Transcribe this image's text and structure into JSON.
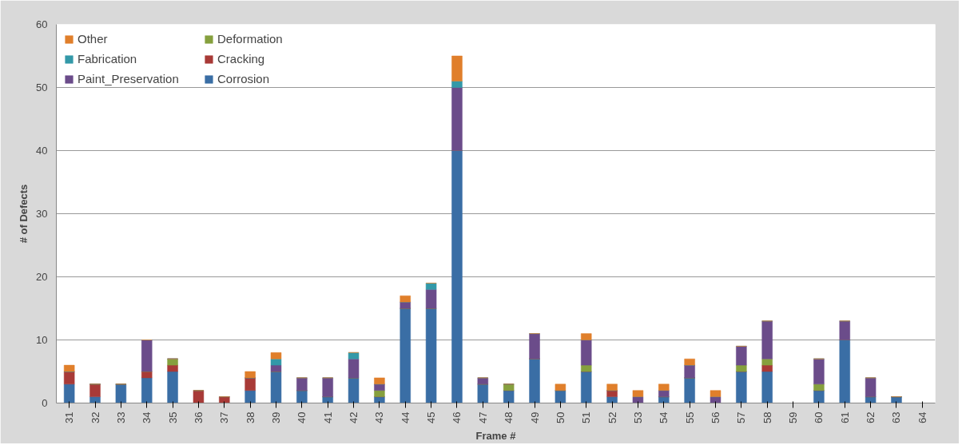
{
  "chart_data": {
    "type": "bar",
    "stacked": true,
    "xlabel": "Frame #",
    "ylabel": "# of Defects",
    "categories": [
      "31",
      "32",
      "33",
      "34",
      "35",
      "36",
      "37",
      "38",
      "39",
      "40",
      "41",
      "42",
      "43",
      "44",
      "45",
      "46",
      "47",
      "48",
      "49",
      "50",
      "51",
      "52",
      "53",
      "54",
      "55",
      "56",
      "57",
      "58",
      "59",
      "60",
      "61",
      "62",
      "63",
      "64"
    ],
    "series": [
      {
        "name": "Corrosion",
        "color": "#3a6ea5",
        "values": [
          3,
          1,
          3,
          4,
          5,
          0,
          0,
          2,
          5,
          2,
          1,
          4,
          1,
          15,
          15,
          40,
          3,
          2,
          7,
          2,
          5,
          1,
          0,
          1,
          4,
          0,
          5,
          5,
          0,
          2,
          10,
          1,
          1,
          0
        ]
      },
      {
        "name": "Cracking",
        "color": "#a83a37",
        "values": [
          2,
          2,
          0,
          1,
          1,
          2,
          1,
          2,
          0,
          0,
          0,
          0,
          0,
          0,
          0,
          0,
          0,
          0,
          0,
          0,
          0,
          1,
          0,
          0,
          0,
          0,
          0,
          1,
          0,
          0,
          0,
          0,
          0,
          0
        ]
      },
      {
        "name": "Deformation",
        "color": "#86a03e",
        "values": [
          0,
          0,
          0,
          0,
          1,
          0,
          0,
          0,
          0,
          0,
          0,
          0,
          1,
          0,
          0,
          0,
          0,
          1,
          0,
          0,
          1,
          0,
          0,
          0,
          0,
          0,
          1,
          1,
          0,
          1,
          0,
          0,
          0,
          0
        ]
      },
      {
        "name": "Paint_Preservation",
        "color": "#6b4c8a",
        "values": [
          0,
          0,
          0,
          5,
          0,
          0,
          0,
          0,
          1,
          2,
          3,
          3,
          1,
          1,
          3,
          10,
          1,
          0,
          4,
          0,
          4,
          0,
          1,
          1,
          2,
          1,
          3,
          6,
          0,
          4,
          3,
          3,
          0,
          0
        ]
      },
      {
        "name": "Fabrication",
        "color": "#3399a8",
        "values": [
          0,
          0,
          0,
          0,
          0,
          0,
          0,
          0,
          1,
          0,
          0,
          1,
          0,
          0,
          1,
          1,
          0,
          0,
          0,
          0,
          0,
          0,
          0,
          0,
          0,
          0,
          0,
          0,
          0,
          0,
          0,
          0,
          0,
          0
        ]
      },
      {
        "name": "Other",
        "color": "#e07f2b",
        "values": [
          1,
          0,
          0,
          0,
          0,
          0,
          0,
          1,
          1,
          0,
          0,
          0,
          1,
          1,
          0,
          4,
          0,
          0,
          0,
          1,
          1,
          1,
          1,
          1,
          1,
          1,
          0,
          0,
          0,
          0,
          0,
          0,
          0,
          0
        ]
      }
    ],
    "ylim": [
      0,
      60
    ],
    "yticks": [
      0,
      10,
      20,
      30,
      40,
      50,
      60
    ],
    "grid": "y",
    "legend": "top left"
  }
}
